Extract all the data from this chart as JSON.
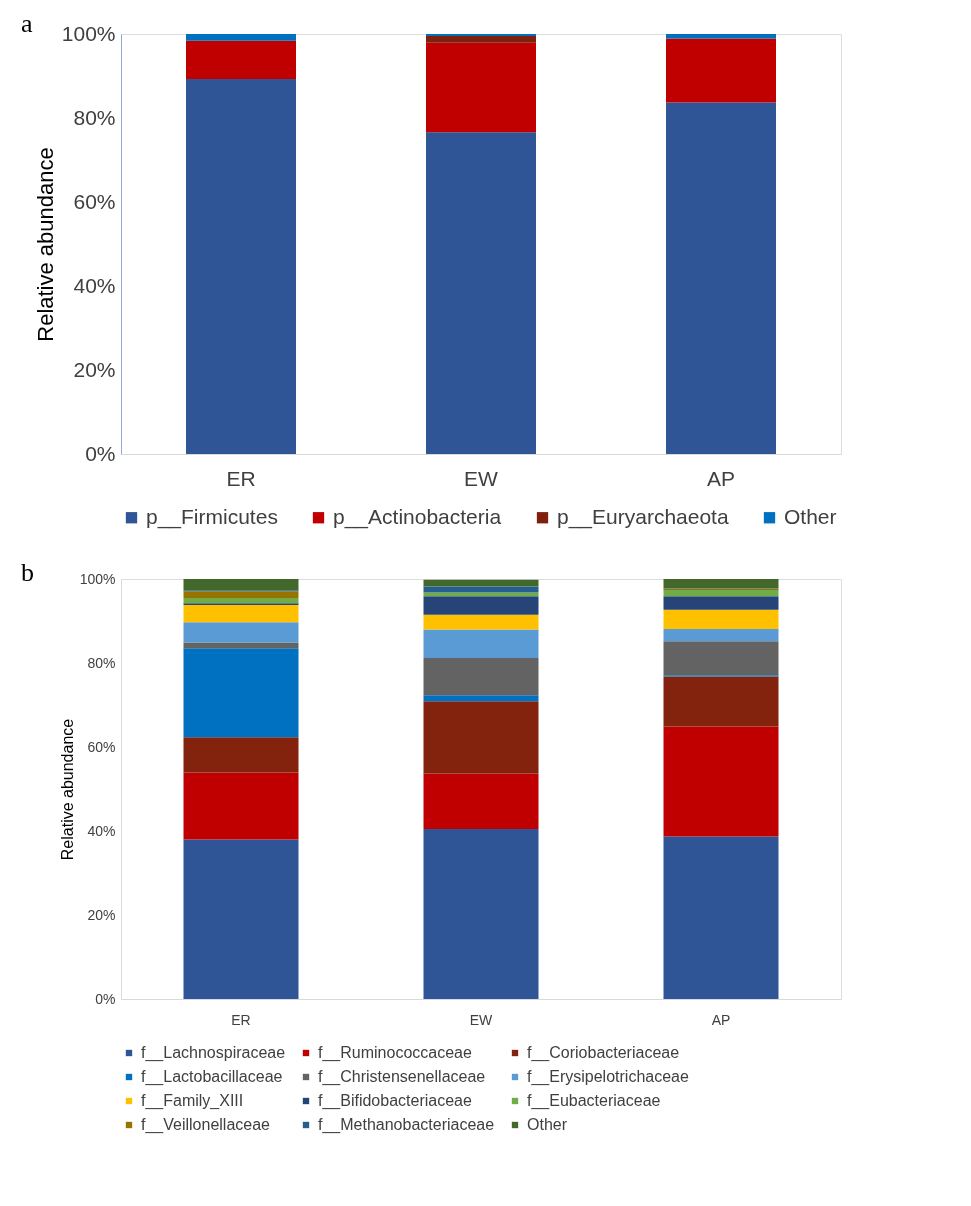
{
  "chart_data": [
    {
      "type": "bar",
      "title": "a",
      "ylabel": "Relative abundance",
      "categories": [
        "ER",
        "EW",
        "AP"
      ],
      "stacked": true,
      "legend": "bottom",
      "grid": false,
      "ylim": [
        0,
        100
      ],
      "yticks": [
        {
          "value": 0,
          "label": "0%"
        },
        {
          "value": 20,
          "label": "20%"
        },
        {
          "value": 40,
          "label": "40%"
        },
        {
          "value": 60,
          "label": "60%"
        },
        {
          "value": 80,
          "label": "80%"
        },
        {
          "value": 100,
          "label": "100%"
        }
      ],
      "series": [
        {
          "name": "p__Firmicutes",
          "color": "#2f5597",
          "values": [
            89.3,
            76.6,
            83.7
          ]
        },
        {
          "name": "p__Actinobacteria",
          "color": "#c00000",
          "values": [
            9.1,
            21.3,
            15.2
          ]
        },
        {
          "name": "p__Euryarchaeota",
          "color": "#7f200e",
          "values": [
            0,
            1.6,
            0
          ]
        },
        {
          "name": "Other",
          "color": "#0070c0",
          "values": [
            1.6,
            0.5,
            1.1
          ]
        }
      ]
    },
    {
      "type": "bar",
      "title": "b",
      "ylabel": "Relative abundance",
      "categories": [
        "ER",
        "EW",
        "AP"
      ],
      "stacked": true,
      "legend": "bottom",
      "grid": false,
      "ylim": [
        0,
        100
      ],
      "yticks": [
        {
          "value": 0,
          "label": "0%"
        },
        {
          "value": 20,
          "label": "20%"
        },
        {
          "value": 40,
          "label": "40%"
        },
        {
          "value": 60,
          "label": "60%"
        },
        {
          "value": 80,
          "label": "80%"
        },
        {
          "value": 100,
          "label": "100%"
        }
      ],
      "series": [
        {
          "name": "f__Lachnospiraceae",
          "color": "#2f5597",
          "values": [
            38.0,
            40.5,
            38.7
          ]
        },
        {
          "name": "f__Ruminococcaceae",
          "color": "#c00000",
          "values": [
            15.9,
            13.2,
            26.2
          ]
        },
        {
          "name": "f__Coriobacteriaceae",
          "color": "#83230d",
          "values": [
            8.4,
            17.2,
            11.9
          ]
        },
        {
          "name": "f__Lactobacillaceae",
          "color": "#0070c0",
          "values": [
            21.2,
            1.4,
            0.3
          ]
        },
        {
          "name": "f__Christensenellaceae",
          "color": "#636363",
          "values": [
            1.4,
            8.9,
            8.1
          ]
        },
        {
          "name": "f__Erysipelotrichaceae",
          "color": "#5b9bd5",
          "values": [
            4.8,
            6.8,
            2.9
          ]
        },
        {
          "name": "f__Family_XIII",
          "color": "#ffc000",
          "values": [
            4.1,
            3.5,
            4.6
          ]
        },
        {
          "name": "f__Bifidobacteriaceae",
          "color": "#264478",
          "values": [
            0.4,
            4.4,
            3.2
          ]
        },
        {
          "name": "f__Eubacteriaceae",
          "color": "#70ad47",
          "values": [
            1.3,
            0.9,
            1.5
          ]
        },
        {
          "name": "f__Veillonellaceae",
          "color": "#997300",
          "values": [
            1.5,
            null,
            0.3
          ]
        },
        {
          "name": "f__Methanobacteriaceae",
          "color": "#255e91",
          "values": [
            0.2,
            1.4,
            0.1
          ]
        },
        {
          "name": "Other",
          "color": "#43682b",
          "values": [
            2.8,
            1.6,
            2.2
          ]
        }
      ]
    }
  ]
}
